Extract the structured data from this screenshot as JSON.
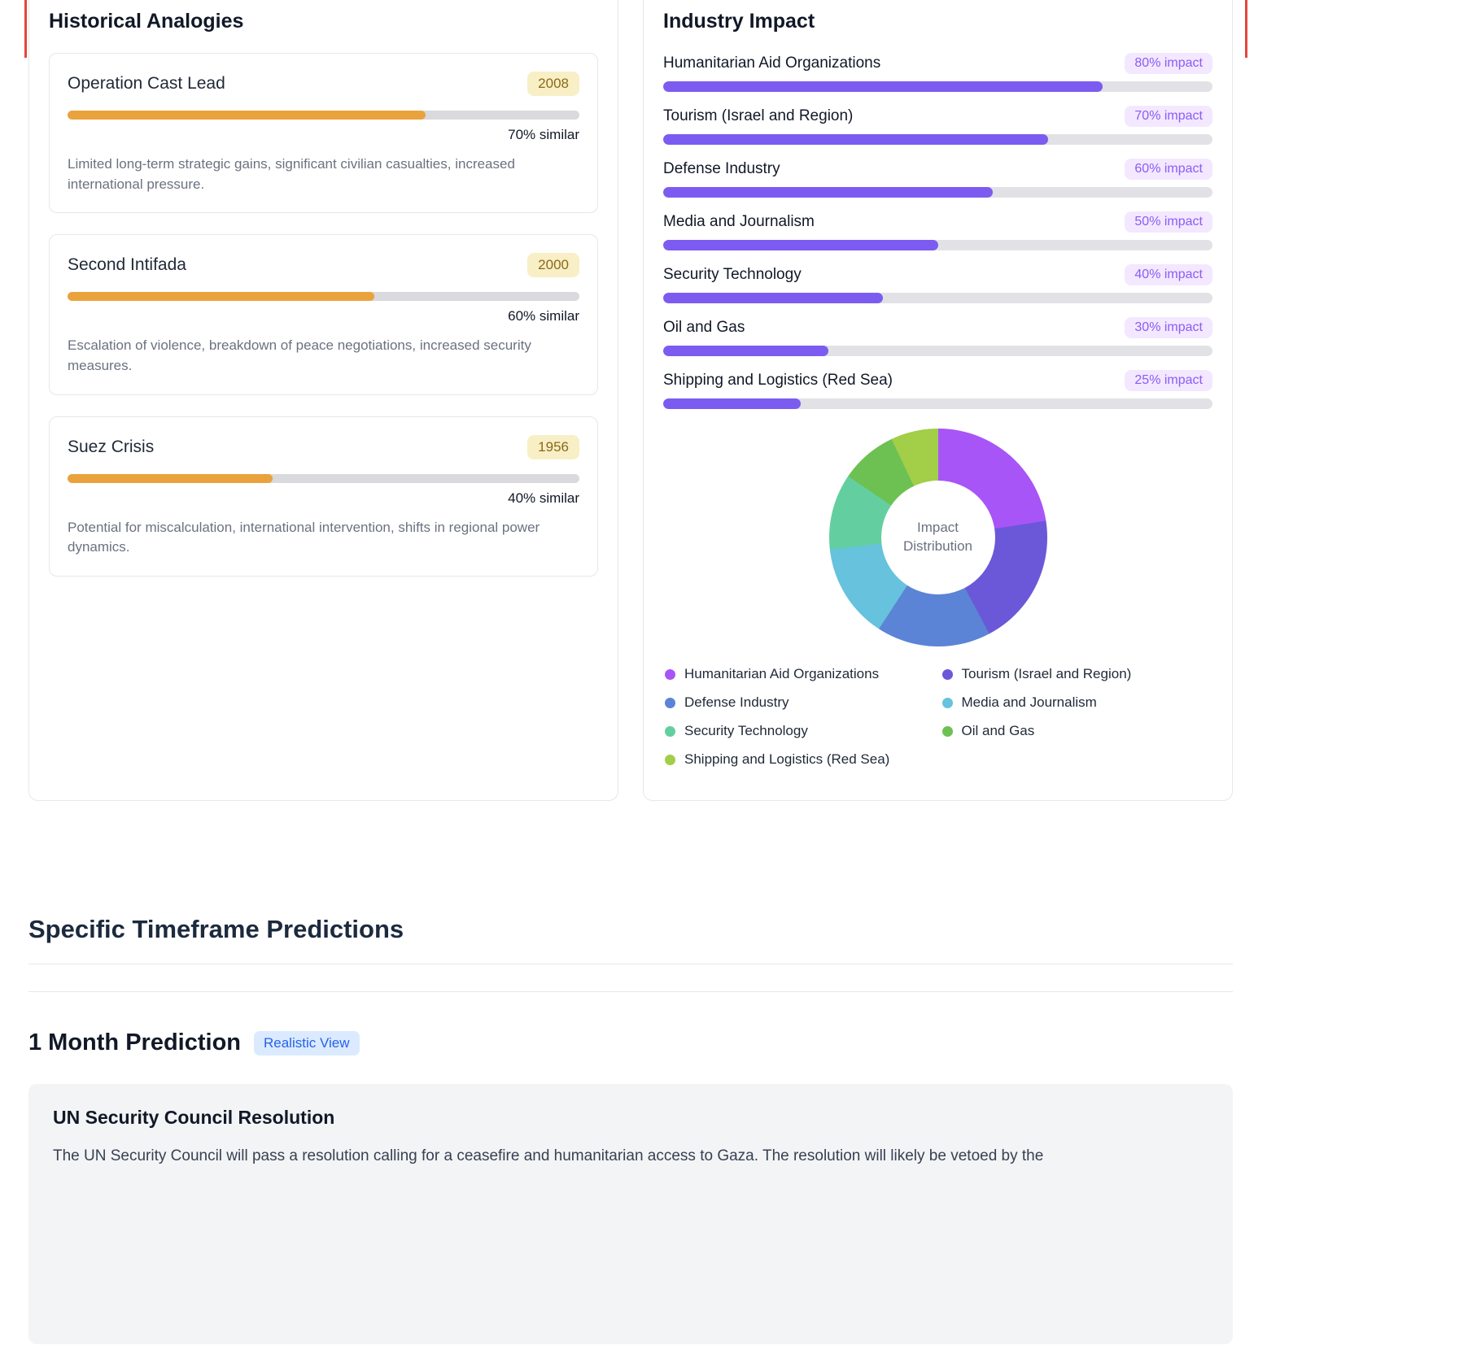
{
  "colors": {
    "analogy_bar": "#eaa23c",
    "analogy_track": "#d9d9de",
    "year_badge_bg": "#f8efc6",
    "year_badge_text": "#8a6a15",
    "impact_bar": "#7c5cf0",
    "impact_track": "#e2e2e6",
    "impact_badge_bg": "#f3e8ff",
    "impact_badge_text": "#8b5cf6",
    "view_badge_bg": "#dbeafe",
    "view_badge_text": "#2563eb",
    "artifact_line": "#e5453c"
  },
  "historical": {
    "title": "Historical Analogies",
    "items": [
      {
        "name": "Operation Cast Lead",
        "year": "2008",
        "similarity_pct": 70,
        "similarity_label": "70% similar",
        "description": "Limited long-term strategic gains, significant civilian casualties, increased international pressure."
      },
      {
        "name": "Second Intifada",
        "year": "2000",
        "similarity_pct": 60,
        "similarity_label": "60% similar",
        "description": "Escalation of violence, breakdown of peace negotiations, increased security measures."
      },
      {
        "name": "Suez Crisis",
        "year": "1956",
        "similarity_pct": 40,
        "similarity_label": "40% similar",
        "description": "Potential for miscalculation, international intervention, shifts in regional power dynamics."
      }
    ]
  },
  "industry": {
    "title": "Industry Impact",
    "items": [
      {
        "name": "Humanitarian Aid Organizations",
        "impact_pct": 80,
        "impact_label": "80% impact"
      },
      {
        "name": "Tourism (Israel and Region)",
        "impact_pct": 70,
        "impact_label": "70% impact"
      },
      {
        "name": "Defense Industry",
        "impact_pct": 60,
        "impact_label": "60% impact"
      },
      {
        "name": "Media and Journalism",
        "impact_pct": 50,
        "impact_label": "50% impact"
      },
      {
        "name": "Security Technology",
        "impact_pct": 40,
        "impact_label": "40% impact"
      },
      {
        "name": "Oil and Gas",
        "impact_pct": 30,
        "impact_label": "30% impact"
      },
      {
        "name": "Shipping and Logistics (Red Sea)",
        "impact_pct": 25,
        "impact_label": "25% impact"
      }
    ],
    "donut_center_line1": "Impact",
    "donut_center_line2": "Distribution"
  },
  "timeframe": {
    "section_title": "Specific Timeframe Predictions",
    "month1_title": "1 Month Prediction",
    "month1_badge": "Realistic View"
  },
  "prediction": {
    "title": "UN Security Council Resolution",
    "body": "The UN Security Council will pass a resolution calling for a ceasefire and humanitarian access to Gaza. The resolution will likely be vetoed by the"
  },
  "chart_data": [
    {
      "type": "bar",
      "title": "Industry Impact",
      "orientation": "horizontal",
      "categories": [
        "Humanitarian Aid Organizations",
        "Tourism (Israel and Region)",
        "Defense Industry",
        "Media and Journalism",
        "Security Technology",
        "Oil and Gas",
        "Shipping and Logistics (Red Sea)"
      ],
      "values": [
        80,
        70,
        60,
        50,
        40,
        30,
        25
      ],
      "unit": "% impact",
      "xlim": [
        0,
        100
      ],
      "bar_color": "#7c5cf0"
    },
    {
      "type": "pie",
      "donut": true,
      "title": "Impact Distribution",
      "labels": [
        "Humanitarian Aid Organizations",
        "Tourism (Israel and Region)",
        "Defense Industry",
        "Media and Journalism",
        "Security Technology",
        "Oil and Gas",
        "Shipping and Logistics (Red Sea)"
      ],
      "values": [
        80,
        70,
        60,
        50,
        40,
        30,
        25
      ],
      "colors": [
        "#a855f7",
        "#6a58d8",
        "#5b84d6",
        "#66c2dd",
        "#63cfa0",
        "#6dc152",
        "#a2ce48"
      ],
      "legend_position": "bottom"
    },
    {
      "type": "bar",
      "title": "Historical Analogies similarity",
      "orientation": "horizontal",
      "categories": [
        "Operation Cast Lead",
        "Second Intifada",
        "Suez Crisis"
      ],
      "values": [
        70,
        60,
        40
      ],
      "unit": "% similar",
      "xlim": [
        0,
        100
      ],
      "bar_color": "#eaa23c"
    }
  ]
}
